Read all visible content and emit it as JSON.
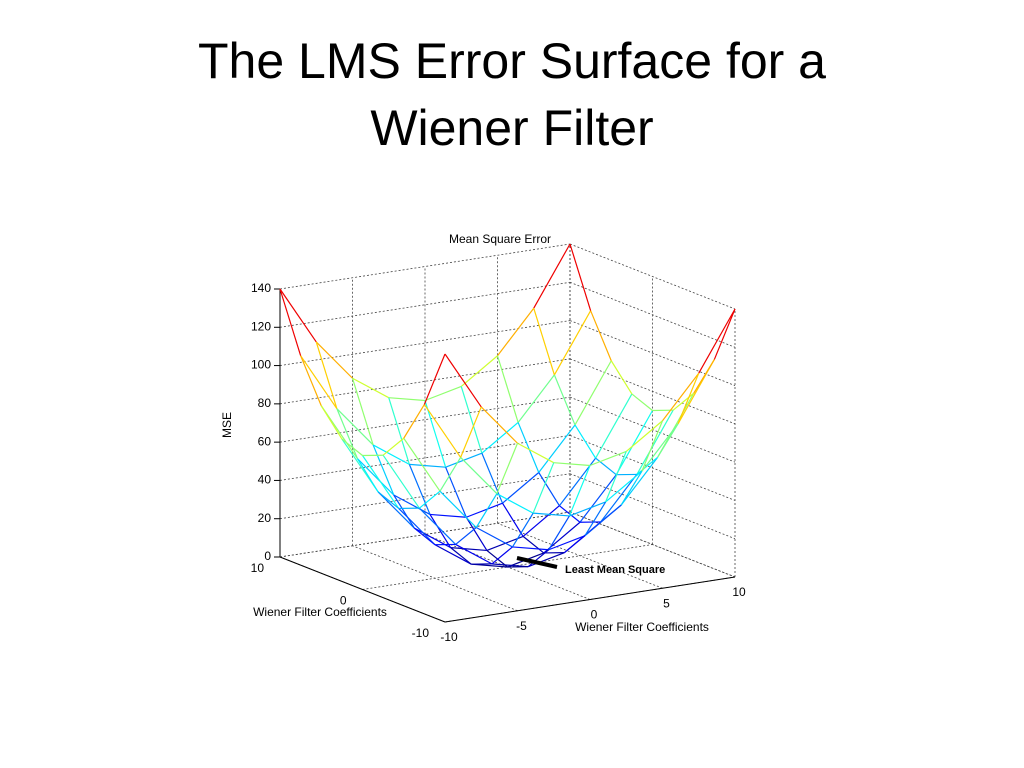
{
  "slide": {
    "title": "The LMS Error Surface for a Wiener Filter"
  },
  "chart_data": {
    "type": "surface",
    "title": "Mean Square Error",
    "zlabel": "MSE",
    "xlabel": "Wiener Filter Coefficients",
    "ylabel": "Wiener Filter Coefficients",
    "annotation": "Least Mean Square",
    "x": [
      -10,
      -7.5,
      -5,
      -2.5,
      0,
      2.5,
      5,
      7.5,
      10
    ],
    "y": [
      -10,
      -7.5,
      -5,
      -2.5,
      0,
      2.5,
      5,
      7.5,
      10
    ],
    "z": [
      [
        140,
        109.4,
        87.5,
        74.4,
        70,
        74.4,
        87.5,
        109.4,
        140
      ],
      [
        109.4,
        78.8,
        56.9,
        43.8,
        39.4,
        43.8,
        56.9,
        78.8,
        109.4
      ],
      [
        87.5,
        56.9,
        35,
        21.9,
        17.5,
        21.9,
        35,
        56.9,
        87.5
      ],
      [
        74.4,
        43.8,
        21.9,
        8.8,
        4.4,
        8.8,
        21.9,
        43.8,
        74.4
      ],
      [
        70,
        39.4,
        17.5,
        4.4,
        0,
        4.4,
        17.5,
        39.4,
        70
      ],
      [
        74.4,
        43.8,
        21.9,
        8.8,
        4.4,
        8.8,
        21.9,
        43.8,
        74.4
      ],
      [
        87.5,
        56.9,
        35,
        21.9,
        17.5,
        21.9,
        35,
        56.9,
        87.5
      ],
      [
        109.4,
        78.8,
        56.9,
        43.8,
        39.4,
        43.8,
        56.9,
        78.8,
        109.4
      ],
      [
        140,
        109.4,
        87.5,
        74.4,
        70,
        74.4,
        87.5,
        109.4,
        140
      ]
    ],
    "xlim": [
      -10,
      10
    ],
    "ylim": [
      -10,
      10
    ],
    "zlim": [
      0,
      140
    ],
    "xticks": [
      -10,
      -5,
      0,
      5,
      10
    ],
    "yticks": [
      -10,
      0,
      10
    ],
    "zticks": [
      0,
      20,
      40,
      60,
      80,
      100,
      120,
      140
    ],
    "grid": true,
    "colormap": "jet"
  }
}
